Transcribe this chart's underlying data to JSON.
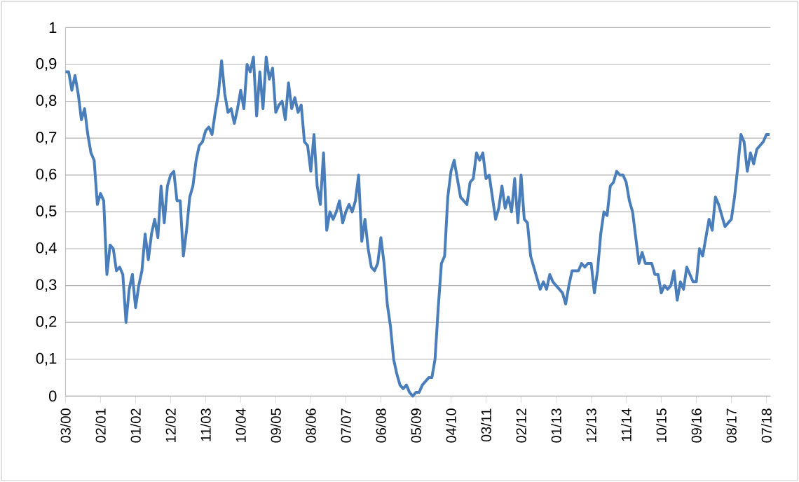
{
  "chart_data": {
    "type": "line",
    "color": "#4a7ebb",
    "grid": "y",
    "ylim": [
      0,
      1
    ],
    "yticks": [
      0,
      {
        "value": 0.1,
        "label": "0,1"
      },
      {
        "value": 0.2,
        "label": "0,2"
      },
      {
        "value": 0.3,
        "label": "0,3"
      },
      {
        "value": 0.4,
        "label": "0,4"
      },
      {
        "value": 0.5,
        "label": "0,5"
      },
      {
        "value": 0.6,
        "label": "0,6"
      },
      {
        "value": 0.7,
        "label": "0,7"
      },
      {
        "value": 0.8,
        "label": "0,8"
      },
      {
        "value": 0.9,
        "label": "0,9"
      },
      1
    ],
    "categories": [
      "03/00",
      null,
      null,
      null,
      null,
      null,
      null,
      null,
      null,
      null,
      null,
      "02/01",
      null,
      null,
      null,
      null,
      null,
      null,
      null,
      null,
      null,
      null,
      "01/02",
      null,
      null,
      null,
      null,
      null,
      null,
      null,
      null,
      null,
      null,
      "12/02",
      null,
      null,
      null,
      null,
      null,
      null,
      null,
      null,
      null,
      null,
      "11/03",
      null,
      null,
      null,
      null,
      null,
      null,
      null,
      null,
      null,
      null,
      "10/04",
      null,
      null,
      null,
      null,
      null,
      null,
      null,
      null,
      null,
      null,
      "09/05",
      null,
      null,
      null,
      null,
      null,
      null,
      null,
      null,
      null,
      null,
      "08/06",
      null,
      null,
      null,
      null,
      null,
      null,
      null,
      null,
      null,
      null,
      "07/07",
      null,
      null,
      null,
      null,
      null,
      null,
      null,
      null,
      null,
      null,
      "06/08",
      null,
      null,
      null,
      null,
      null,
      null,
      null,
      null,
      null,
      null,
      "05/09",
      null,
      null,
      null,
      null,
      null,
      null,
      null,
      null,
      null,
      null,
      "04/10",
      null,
      null,
      null,
      null,
      null,
      null,
      null,
      null,
      null,
      null,
      "03/11",
      null,
      null,
      null,
      null,
      null,
      null,
      null,
      null,
      null,
      null,
      "02/12",
      null,
      null,
      null,
      null,
      null,
      null,
      null,
      null,
      null,
      null,
      "01/13",
      null,
      null,
      null,
      null,
      null,
      null,
      null,
      null,
      null,
      null,
      "12/13",
      null,
      null,
      null,
      null,
      null,
      null,
      null,
      null,
      null,
      null,
      "11/14",
      null,
      null,
      null,
      null,
      null,
      null,
      null,
      null,
      null,
      null,
      "10/15",
      null,
      null,
      null,
      null,
      null,
      null,
      null,
      null,
      null,
      null,
      "09/16",
      null,
      null,
      null,
      null,
      null,
      null,
      null,
      null,
      null,
      null,
      "08/17",
      null,
      null,
      null,
      null,
      null,
      null,
      null,
      null,
      null,
      null,
      "07/18",
      null
    ],
    "values": [
      0.88,
      0.88,
      0.83,
      0.87,
      0.82,
      0.75,
      0.78,
      0.71,
      0.66,
      0.64,
      0.52,
      0.55,
      0.53,
      0.33,
      0.41,
      0.4,
      0.34,
      0.35,
      0.33,
      0.2,
      0.29,
      0.33,
      0.24,
      0.3,
      0.34,
      0.44,
      0.37,
      0.44,
      0.48,
      0.43,
      0.57,
      0.47,
      0.57,
      0.6,
      0.61,
      0.53,
      0.53,
      0.38,
      0.45,
      0.54,
      0.57,
      0.64,
      0.68,
      0.69,
      0.72,
      0.73,
      0.71,
      0.77,
      0.82,
      0.91,
      0.82,
      0.77,
      0.78,
      0.74,
      0.78,
      0.83,
      0.78,
      0.9,
      0.88,
      0.92,
      0.76,
      0.88,
      0.78,
      0.92,
      0.86,
      0.89,
      0.77,
      0.79,
      0.8,
      0.75,
      0.85,
      0.78,
      0.81,
      0.77,
      0.79,
      0.69,
      0.68,
      0.61,
      0.71,
      0.57,
      0.52,
      0.66,
      0.45,
      0.5,
      0.48,
      0.5,
      0.53,
      0.47,
      0.5,
      0.52,
      0.5,
      0.53,
      0.6,
      0.42,
      0.48,
      0.4,
      0.35,
      0.34,
      0.36,
      0.43,
      0.36,
      0.25,
      0.19,
      0.1,
      0.06,
      0.03,
      0.02,
      0.03,
      0.01,
      0.0,
      0.01,
      0.01,
      0.03,
      0.04,
      0.05,
      0.05,
      0.1,
      0.24,
      0.36,
      0.38,
      0.54,
      0.61,
      0.64,
      0.59,
      0.54,
      0.53,
      0.52,
      0.58,
      0.59,
      0.66,
      0.64,
      0.66,
      0.59,
      0.6,
      0.54,
      0.48,
      0.51,
      0.57,
      0.51,
      0.54,
      0.5,
      0.59,
      0.47,
      0.6,
      0.48,
      0.47,
      0.38,
      0.35,
      0.32,
      0.29,
      0.31,
      0.29,
      0.33,
      0.31,
      0.3,
      0.29,
      0.28,
      0.25,
      0.3,
      0.34,
      0.34,
      0.34,
      0.36,
      0.35,
      0.36,
      0.36,
      0.28,
      0.34,
      0.44,
      0.5,
      0.49,
      0.57,
      0.58,
      0.61,
      0.6,
      0.6,
      0.58,
      0.53,
      0.5,
      0.43,
      0.36,
      0.39,
      0.36,
      0.36,
      0.36,
      0.33,
      0.33,
      0.28,
      0.3,
      0.29,
      0.3,
      0.34,
      0.26,
      0.31,
      0.29,
      0.35,
      0.33,
      0.31,
      0.31,
      0.4,
      0.38,
      0.43,
      0.48,
      0.45,
      0.54,
      0.52,
      0.49,
      0.46,
      0.47,
      0.48,
      0.54,
      0.62,
      0.71,
      0.69,
      0.61,
      0.66,
      0.63,
      0.67,
      0.68,
      0.69,
      0.71,
      0.71
    ]
  }
}
